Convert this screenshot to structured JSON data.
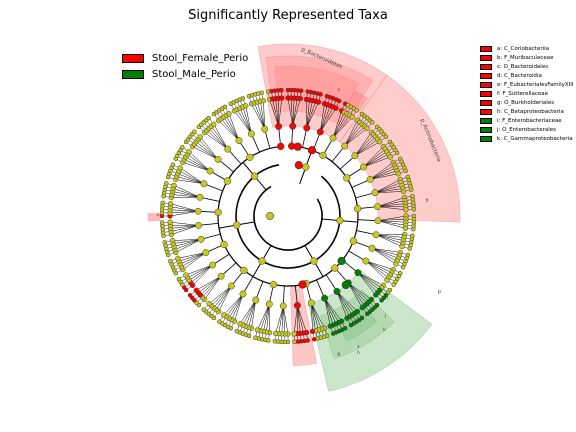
{
  "title": "Significantly Represented Taxa",
  "legend": [
    {
      "label": "Stool_Female_Perio",
      "color": "#ff0000"
    },
    {
      "label": "Stool_Male_Perio",
      "color": "#008000"
    }
  ],
  "colors": {
    "female": "#ff0000",
    "male": "#008000",
    "neutral": "#c8c81e",
    "female_shade": "#ff8080",
    "male_shade": "#80c080"
  },
  "taxa_key": [
    {
      "label": "a: C_Coriobacteriia",
      "group": "female"
    },
    {
      "label": "b: F_Muribaculaceae",
      "group": "female"
    },
    {
      "label": "c: O_Bacteroidales",
      "group": "female"
    },
    {
      "label": "d: C_Bacteroidia",
      "group": "female"
    },
    {
      "label": "e: F_EubacterialesFamilyXIII",
      "group": "female"
    },
    {
      "label": "f: F_Sutterellaceae",
      "group": "female"
    },
    {
      "label": "g: O_Burkholderiales",
      "group": "female"
    },
    {
      "label": "h: C_Betaproteobacteria",
      "group": "female"
    },
    {
      "label": "i: F_Enterobacteriaceae",
      "group": "male"
    },
    {
      "label": "j: O_Enterobacterales",
      "group": "male"
    },
    {
      "label": "k: C_Gammaproteobacteria",
      "group": "male"
    }
  ],
  "clade_labels": {
    "bacteroidetes": "p_Bacteroidetes",
    "actinobacteria": "p_Actinobacteria",
    "proteobacteria": "p",
    "a": "a",
    "b": "b",
    "c": "c",
    "d": "d",
    "e": "e",
    "f": "f",
    "g": "g",
    "h": "h",
    "i": "i",
    "j": "j",
    "k": "k"
  }
}
